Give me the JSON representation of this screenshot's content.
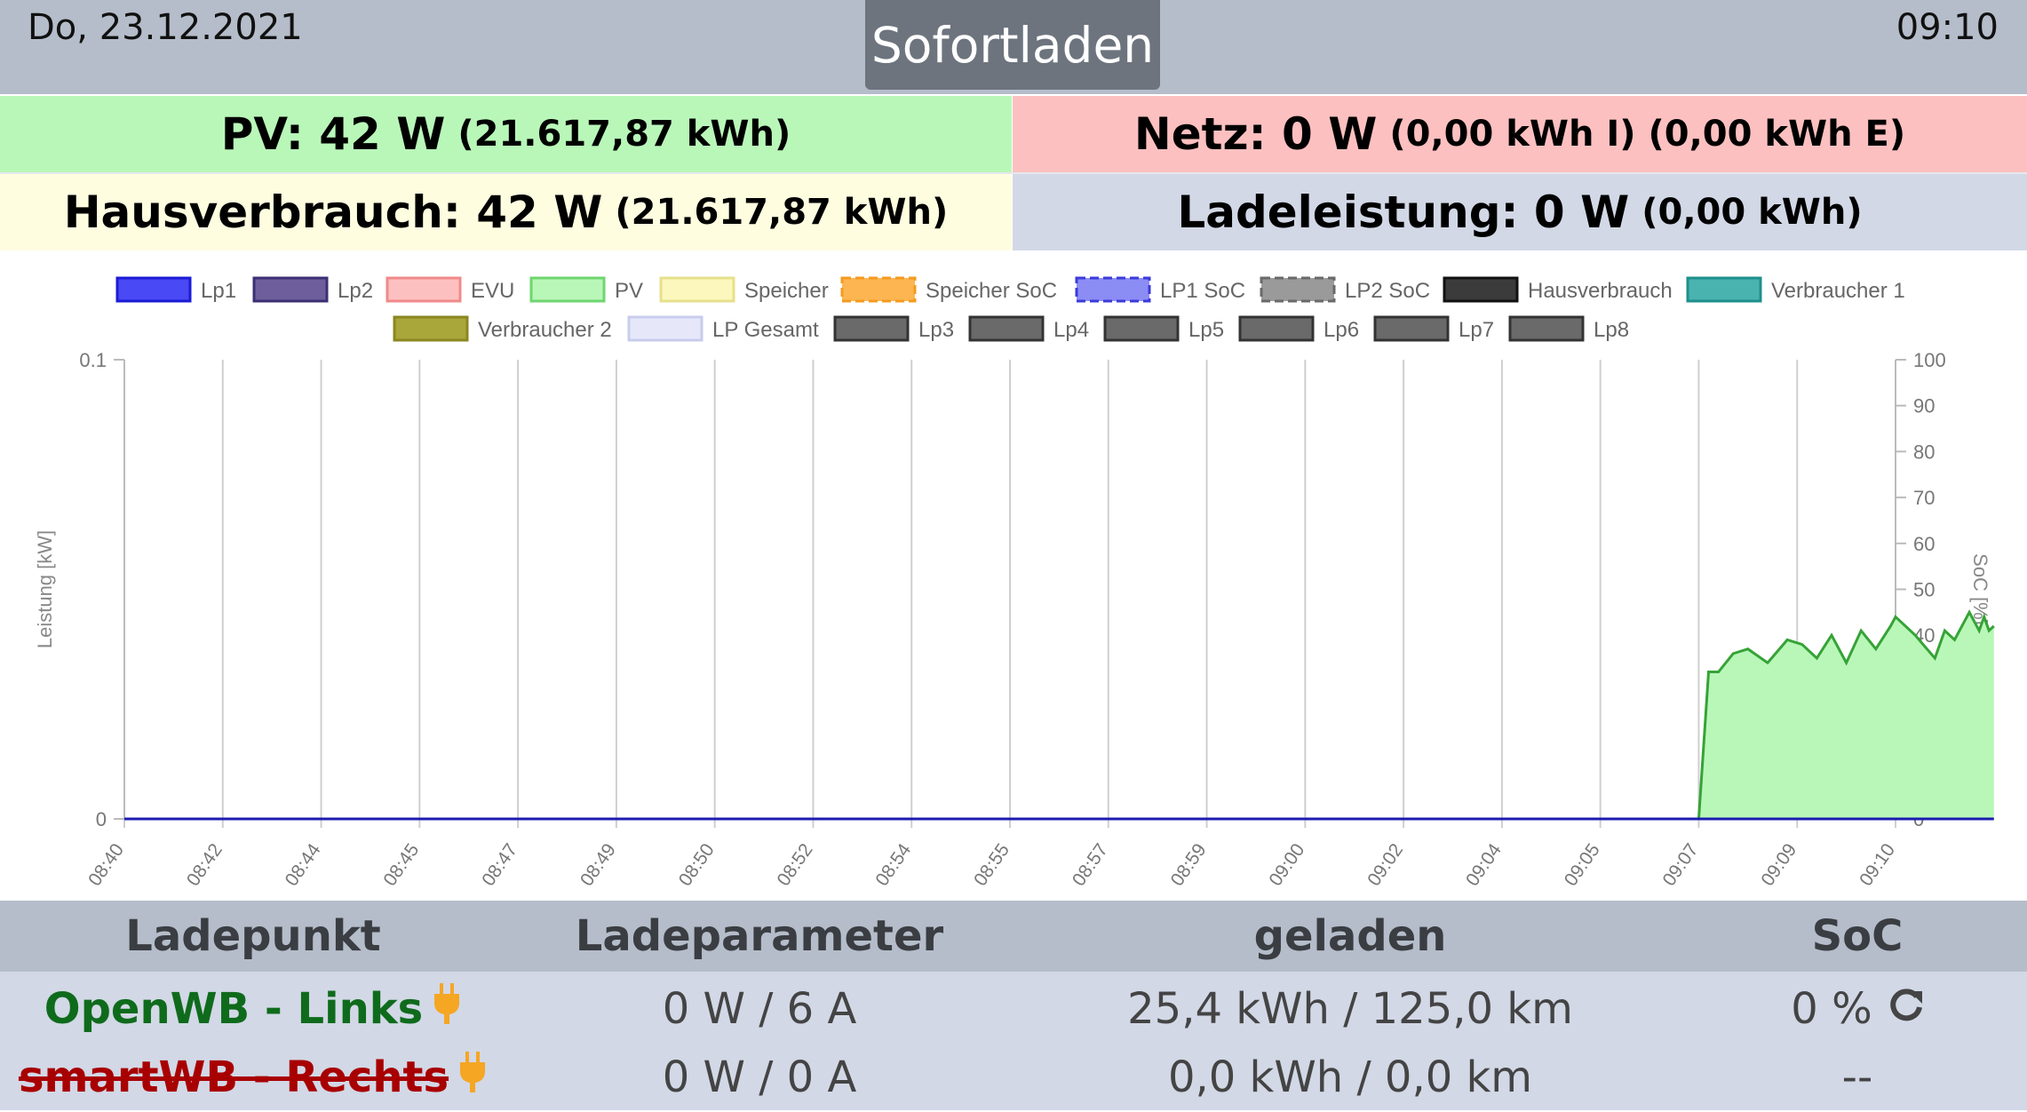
{
  "header": {
    "date": "Do, 23.12.2021",
    "time": "09:10",
    "mode": "Sofortladen"
  },
  "summary": {
    "pv": {
      "label": "PV: 42 W",
      "detail": "(21.617,87 kWh)"
    },
    "netz": {
      "label": "Netz: 0 W",
      "detail": "(0,00 kWh I) (0,00 kWh E)"
    },
    "haus": {
      "label": "Hausverbrauch: 42 W",
      "detail": "(21.617,87 kWh)"
    },
    "lade": {
      "label": "Ladeleistung: 0 W",
      "detail": "(0,00 kWh)"
    }
  },
  "colors": {
    "pv_bg": "#b9f7b9",
    "netz_bg": "#fdc0c0",
    "haus_bg": "#fefde0",
    "lade_bg": "#d2d8e6",
    "ok_green": "#0f6b1c",
    "error_red": "#a80000",
    "plug_orange": "#f5a623"
  },
  "chart_data": {
    "type": "area",
    "ylabel": "Leistung [kW]",
    "y2label": "SoC [%]",
    "ylim": [
      0,
      0.1
    ],
    "y2lim": [
      0,
      100
    ],
    "y_ticks": [
      "0",
      "0.1"
    ],
    "y2_ticks": [
      "0",
      "10",
      "20",
      "30",
      "40",
      "50",
      "60",
      "70",
      "80",
      "90",
      "100"
    ],
    "x_ticks": [
      "08:40",
      "08:42",
      "08:44",
      "08:45",
      "08:47",
      "08:49",
      "08:50",
      "08:52",
      "08:54",
      "08:55",
      "08:57",
      "08:59",
      "09:00",
      "09:02",
      "09:04",
      "09:05",
      "09:07",
      "09:09",
      "09:10"
    ],
    "legend": [
      {
        "name": "Lp1",
        "fill": "#4949f5",
        "stroke": "#1c1cd6",
        "dashed": false
      },
      {
        "name": "Lp2",
        "fill": "#6e5f9c",
        "stroke": "#3d2f73",
        "dashed": false
      },
      {
        "name": "EVU",
        "fill": "#fdc0c0",
        "stroke": "#f08a8a",
        "dashed": false
      },
      {
        "name": "PV",
        "fill": "#b9f7b9",
        "stroke": "#6fd66f",
        "dashed": false
      },
      {
        "name": "Speicher",
        "fill": "#fcf7bd",
        "stroke": "#e6e08c",
        "dashed": false
      },
      {
        "name": "Speicher SoC",
        "fill": "#fdb552",
        "stroke": "#f59b1f",
        "dashed": true
      },
      {
        "name": "LP1 SoC",
        "fill": "#8c8cf5",
        "stroke": "#3b3bdb",
        "dashed": true
      },
      {
        "name": "LP2 SoC",
        "fill": "#9a9a9a",
        "stroke": "#6a6a6a",
        "dashed": true
      },
      {
        "name": "Hausverbrauch",
        "fill": "#3b3b3b",
        "stroke": "#111111",
        "dashed": false
      },
      {
        "name": "Verbraucher 1",
        "fill": "#49b3b0",
        "stroke": "#1f8f8b",
        "dashed": false
      },
      {
        "name": "Verbraucher 2",
        "fill": "#a9a63a",
        "stroke": "#8a8720",
        "dashed": false
      },
      {
        "name": "LP Gesamt",
        "fill": "#e6e8fa",
        "stroke": "#c8ccee",
        "dashed": false
      },
      {
        "name": "Lp3",
        "fill": "#6a6a6a",
        "stroke": "#333333",
        "dashed": false
      },
      {
        "name": "Lp4",
        "fill": "#6a6a6a",
        "stroke": "#333333",
        "dashed": false
      },
      {
        "name": "Lp5",
        "fill": "#6a6a6a",
        "stroke": "#333333",
        "dashed": false
      },
      {
        "name": "Lp6",
        "fill": "#6a6a6a",
        "stroke": "#333333",
        "dashed": false
      },
      {
        "name": "Lp7",
        "fill": "#6a6a6a",
        "stroke": "#333333",
        "dashed": false
      },
      {
        "name": "Lp8",
        "fill": "#6a6a6a",
        "stroke": "#333333",
        "dashed": false
      }
    ],
    "series": [
      {
        "name": "PV",
        "axis": "kW",
        "color": "#36a336",
        "fill": "#b9f7b9",
        "x": [
          16,
          16.1,
          16.2,
          16.35,
          16.5,
          16.7,
          16.9,
          17.05,
          17.2,
          17.35,
          17.5,
          17.65,
          17.8,
          17.95,
          18.0,
          18.2,
          18.4,
          18.5,
          18.6,
          18.7,
          18.75,
          18.85,
          18.9,
          18.95,
          19.0
        ],
        "y": [
          0,
          0.032,
          0.032,
          0.036,
          0.037,
          0.034,
          0.039,
          0.038,
          0.035,
          0.04,
          0.034,
          0.041,
          0.037,
          0.042,
          0.044,
          0.04,
          0.035,
          0.041,
          0.039,
          0.043,
          0.045,
          0.041,
          0.044,
          0.041,
          0.042
        ]
      },
      {
        "name": "Lp1",
        "axis": "kW",
        "color": "#1c1cb0",
        "fill": "none",
        "x": [
          0,
          19
        ],
        "y": [
          0,
          0
        ]
      }
    ]
  },
  "table": {
    "headers": [
      "Ladepunkt",
      "Ladeparameter",
      "geladen",
      "SoC"
    ],
    "rows": [
      {
        "name": "OpenWB - Links",
        "status": "ok",
        "params": "0 W / 6 A",
        "charged": "25,4 kWh / 125,0 km",
        "soc": "0 %",
        "soc_icon": "refresh-icon",
        "plug_icon": "plug-icon"
      },
      {
        "name": "smartWB - Rechts",
        "status": "error",
        "params": "0 W / 0 A",
        "charged": "0,0 kWh / 0,0 km",
        "soc": "--",
        "plug_icon": "plug-icon"
      }
    ]
  }
}
